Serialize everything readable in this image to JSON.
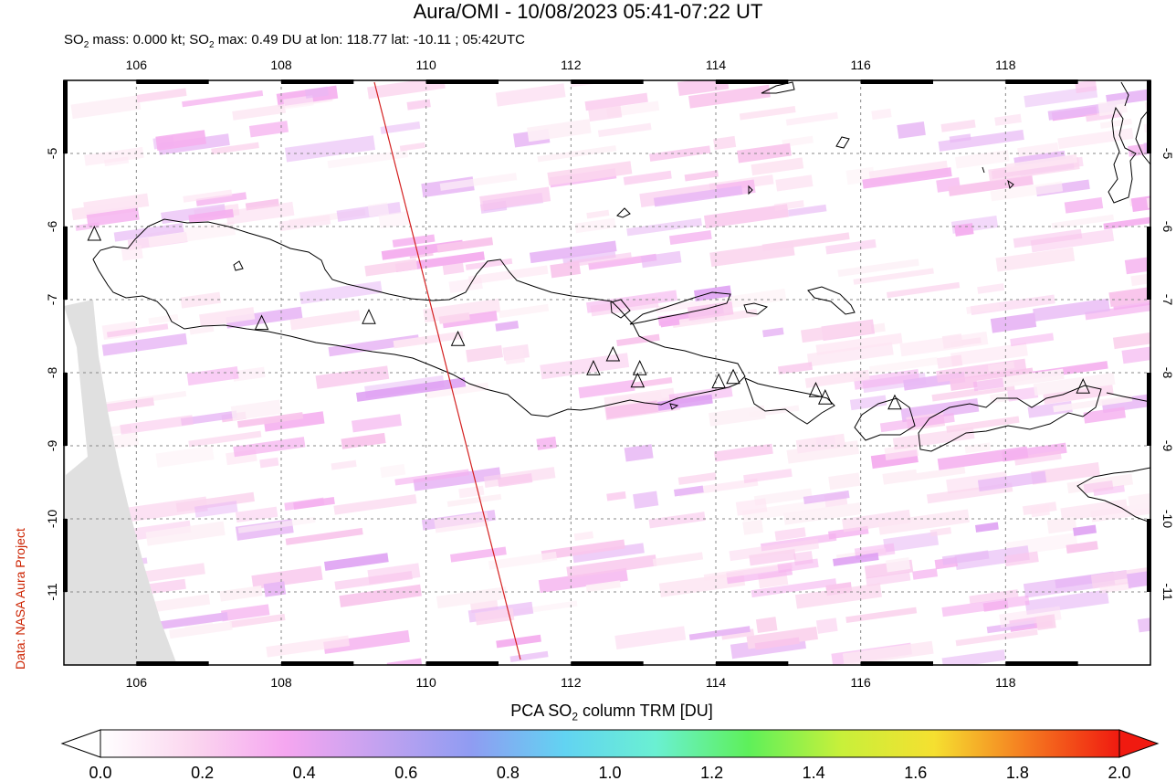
{
  "title": "Aura/OMI - 10/08/2023 05:41-07:22 UT",
  "subtitle": {
    "so2_mass_prefix": "SO",
    "so2_mass_sub": "2",
    "so2_mass_text": " mass: 0.000 kt; SO",
    "so2_max_sub": "2",
    "so2_max_text": " max: 0.49 DU at lon: 118.77 lat: -10.11 ; 05:42UTC"
  },
  "credit": "Data: NASA Aura Project",
  "map": {
    "lon_range": [
      105,
      120
    ],
    "lat_range": [
      -12.0,
      -4.0
    ],
    "lon_ticks": [
      "106",
      "108",
      "110",
      "112",
      "114",
      "116",
      "118"
    ],
    "lat_ticks": [
      "-5",
      "-6",
      "-7",
      "-8",
      "-9",
      "-10",
      "-11"
    ],
    "colors": {
      "coastline": "#000000",
      "orbit_line": "#d42020",
      "no_data": "#e0e0e0",
      "grid": "#888888"
    },
    "volcano_icon": "triangle-icon",
    "volcanoes": [
      [
        105.42,
        -6.1
      ],
      [
        107.73,
        -7.32
      ],
      [
        109.21,
        -7.24
      ],
      [
        110.44,
        -7.54
      ],
      [
        112.31,
        -7.94
      ],
      [
        112.58,
        -7.75
      ],
      [
        112.95,
        -7.94
      ],
      [
        112.92,
        -8.11
      ],
      [
        114.04,
        -8.12
      ],
      [
        114.24,
        -8.06
      ],
      [
        115.38,
        -8.24
      ],
      [
        115.51,
        -8.34
      ],
      [
        116.47,
        -8.41
      ],
      [
        119.07,
        -8.19
      ]
    ]
  },
  "colorbar": {
    "title_prefix": "PCA SO",
    "title_sub": "2",
    "title_suffix": " column TRM [DU]",
    "labels": [
      "0.0",
      "0.2",
      "0.4",
      "0.6",
      "0.8",
      "1.0",
      "1.2",
      "1.4",
      "1.6",
      "1.8",
      "2.0"
    ],
    "stops": [
      "#ffffff",
      "#fbd6ef",
      "#f5a6f0",
      "#c3a2f0",
      "#8f9cf2",
      "#62d3f2",
      "#6af0d2",
      "#5ef05a",
      "#c8f03a",
      "#f5e030",
      "#f57a20",
      "#f01a10"
    ]
  }
}
